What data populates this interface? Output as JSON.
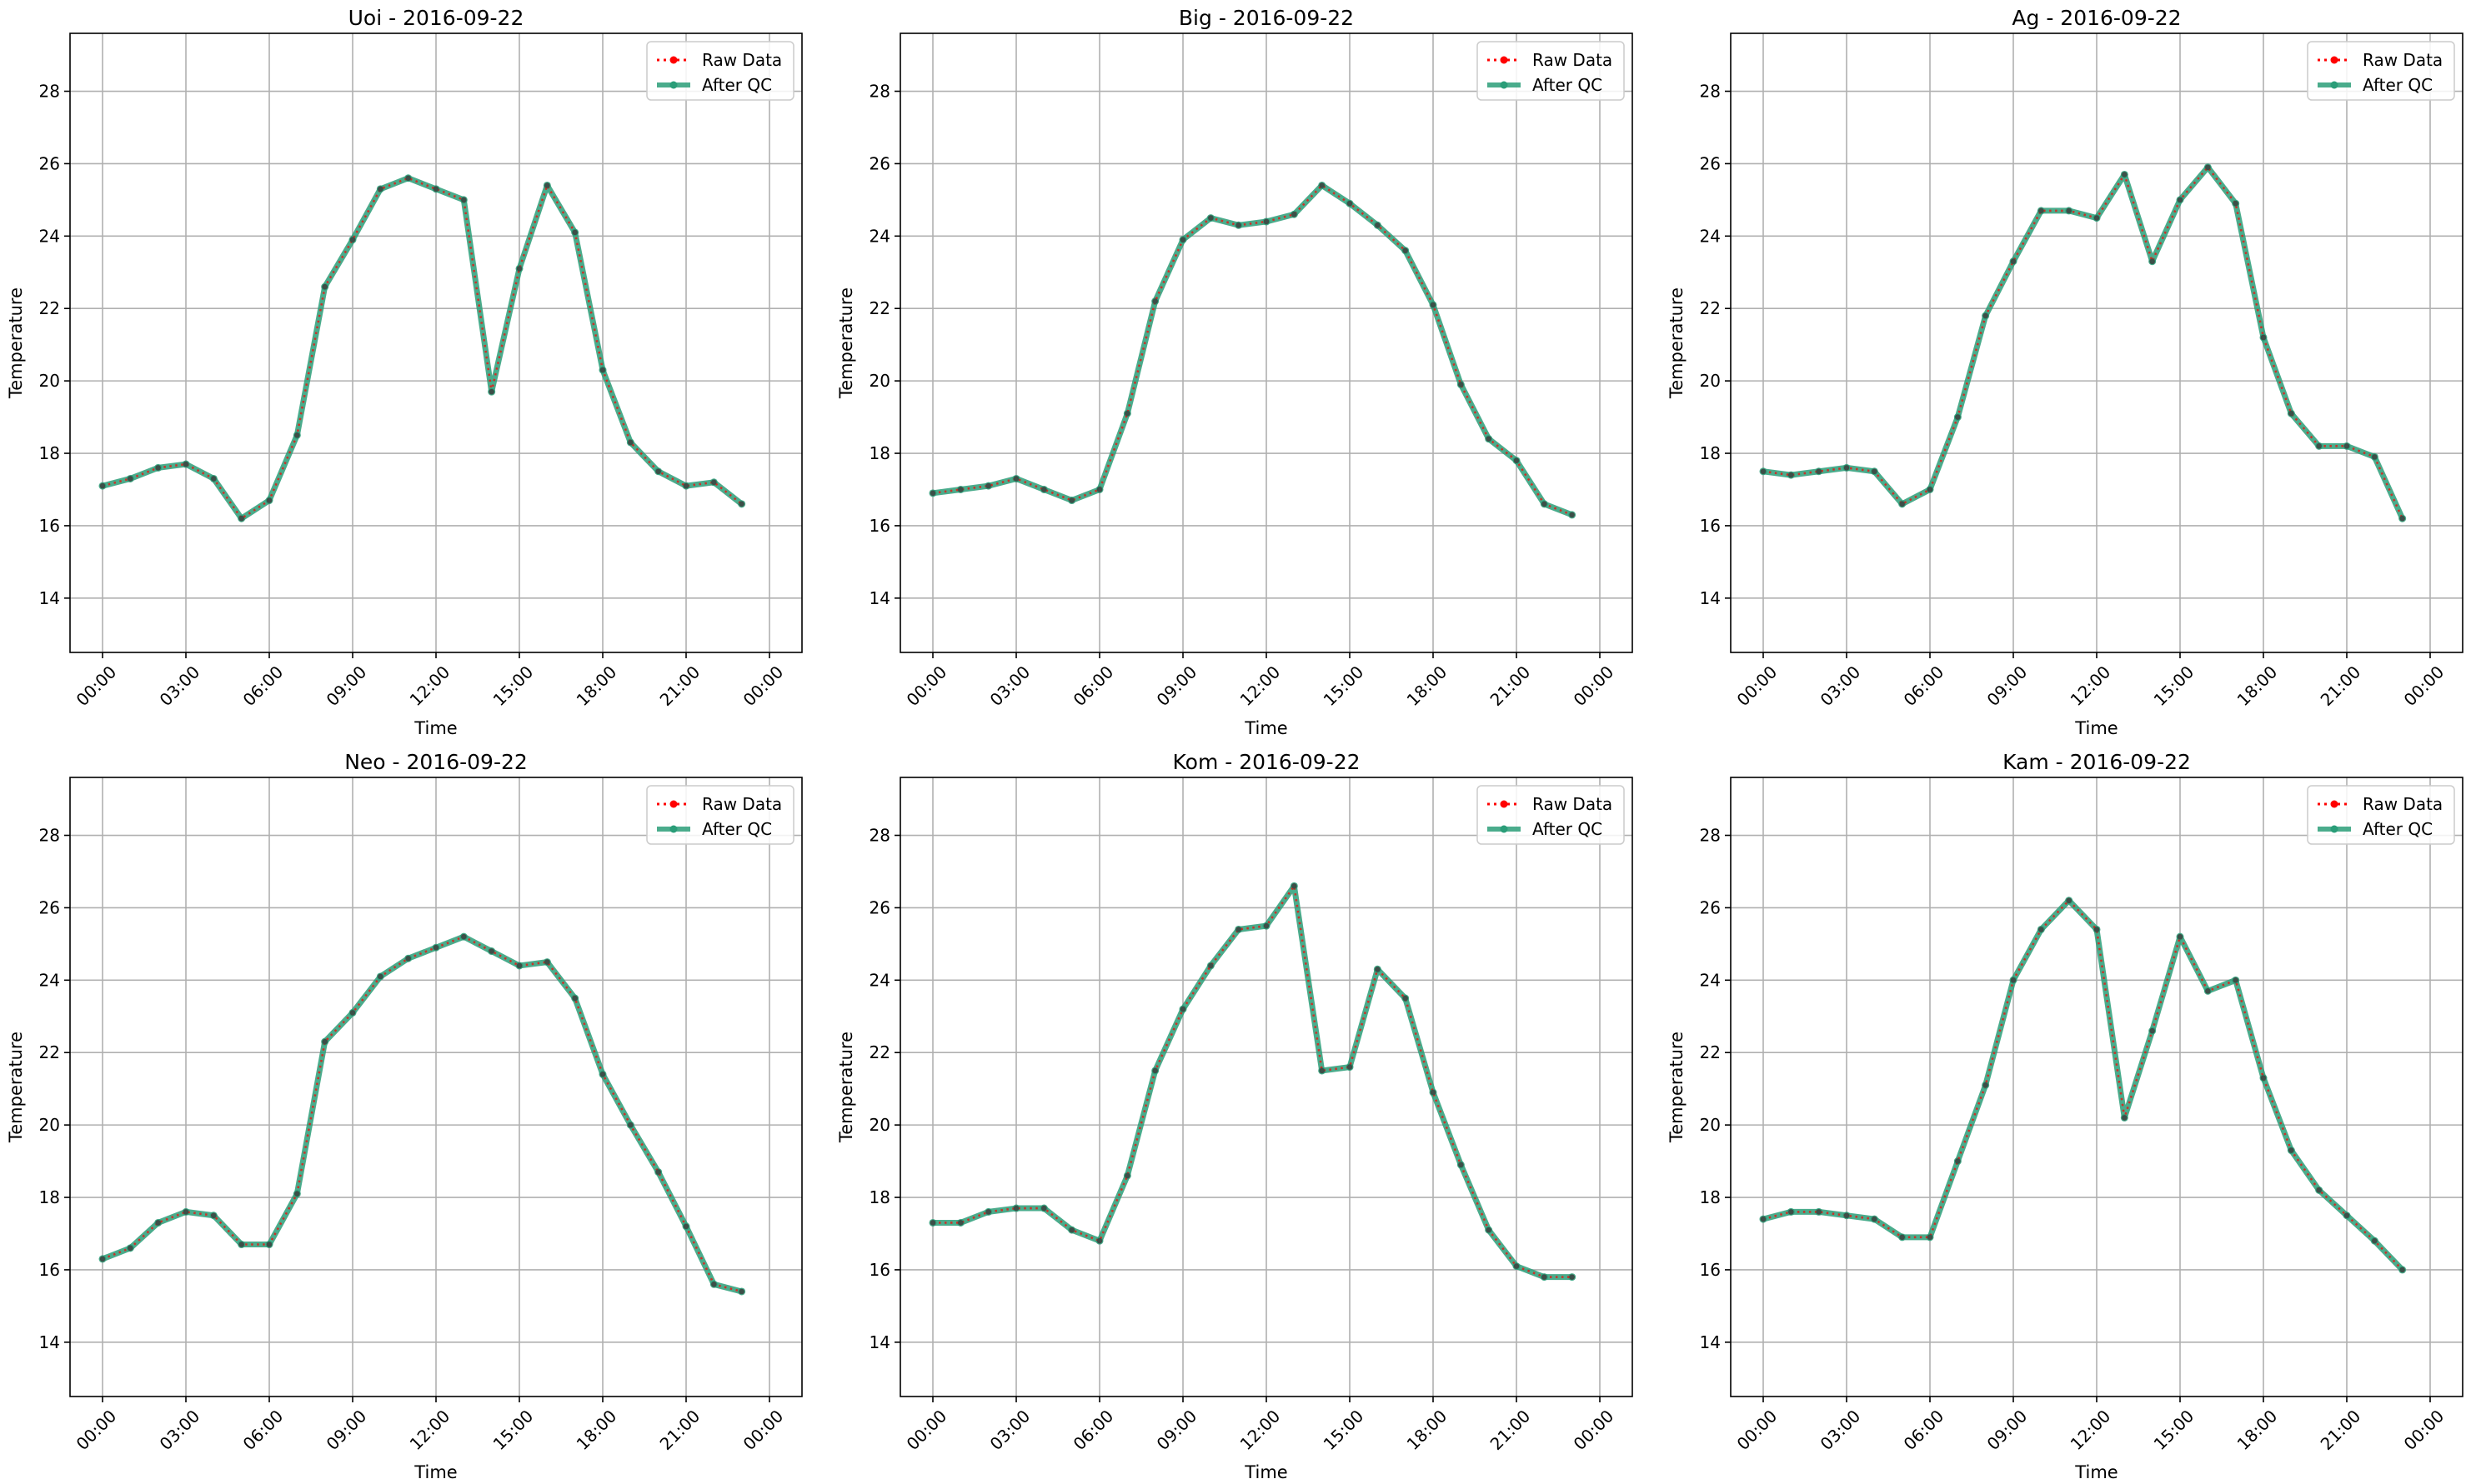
{
  "figure": {
    "legend_labels": {
      "raw": "Raw Data",
      "qc": "After QC"
    },
    "colors": {
      "raw": "#ff0000",
      "qc": "#2a9d78",
      "grid": "#b0b0b0"
    }
  },
  "chart_data": [
    {
      "type": "line",
      "title": "Uoi - 2016-09-22",
      "xlabel": "Time",
      "ylabel": "Temperature",
      "x": [
        "00:00",
        "01:00",
        "02:00",
        "03:00",
        "04:00",
        "05:00",
        "06:00",
        "07:00",
        "08:00",
        "09:00",
        "10:00",
        "11:00",
        "12:00",
        "13:00",
        "14:00",
        "15:00",
        "16:00",
        "17:00",
        "18:00",
        "19:00",
        "20:00",
        "21:00",
        "22:00",
        "23:00"
      ],
      "xticks": [
        "00:00",
        "03:00",
        "06:00",
        "09:00",
        "12:00",
        "15:00",
        "18:00",
        "21:00",
        "00:00"
      ],
      "yticks": [
        14,
        16,
        18,
        20,
        22,
        24,
        26,
        28
      ],
      "ylim": [
        12.5,
        29.6
      ],
      "grid": true,
      "legend": "upper-right",
      "series": [
        {
          "name": "Raw Data",
          "values": [
            17.1,
            17.3,
            17.6,
            17.7,
            17.3,
            16.2,
            16.7,
            18.5,
            22.6,
            23.9,
            25.3,
            25.6,
            25.3,
            25.0,
            19.7,
            23.1,
            25.4,
            24.1,
            20.3,
            18.3,
            17.5,
            17.1,
            17.2,
            16.6
          ]
        },
        {
          "name": "After QC",
          "values": [
            17.1,
            17.3,
            17.6,
            17.7,
            17.3,
            16.2,
            16.7,
            18.5,
            22.6,
            23.9,
            25.3,
            25.6,
            25.3,
            25.0,
            19.7,
            23.1,
            25.4,
            24.1,
            20.3,
            18.3,
            17.5,
            17.1,
            17.2,
            16.6
          ]
        }
      ]
    },
    {
      "type": "line",
      "title": "Big - 2016-09-22",
      "xlabel": "Time",
      "ylabel": "Temperature",
      "x": [
        "00:00",
        "01:00",
        "02:00",
        "03:00",
        "04:00",
        "05:00",
        "06:00",
        "07:00",
        "08:00",
        "09:00",
        "10:00",
        "11:00",
        "12:00",
        "13:00",
        "14:00",
        "15:00",
        "16:00",
        "17:00",
        "18:00",
        "19:00",
        "20:00",
        "21:00",
        "22:00",
        "23:00"
      ],
      "xticks": [
        "00:00",
        "03:00",
        "06:00",
        "09:00",
        "12:00",
        "15:00",
        "18:00",
        "21:00",
        "00:00"
      ],
      "yticks": [
        14,
        16,
        18,
        20,
        22,
        24,
        26,
        28
      ],
      "ylim": [
        12.5,
        29.6
      ],
      "grid": true,
      "legend": "upper-right",
      "series": [
        {
          "name": "Raw Data",
          "values": [
            16.9,
            17.0,
            17.1,
            17.3,
            17.0,
            16.7,
            17.0,
            19.1,
            22.2,
            23.9,
            24.5,
            24.3,
            24.4,
            24.6,
            25.4,
            24.9,
            24.3,
            23.6,
            22.1,
            19.9,
            18.4,
            17.8,
            16.6,
            16.3
          ]
        },
        {
          "name": "After QC",
          "values": [
            16.9,
            17.0,
            17.1,
            17.3,
            17.0,
            16.7,
            17.0,
            19.1,
            22.2,
            23.9,
            24.5,
            24.3,
            24.4,
            24.6,
            25.4,
            24.9,
            24.3,
            23.6,
            22.1,
            19.9,
            18.4,
            17.8,
            16.6,
            16.3
          ]
        }
      ]
    },
    {
      "type": "line",
      "title": "Ag - 2016-09-22",
      "xlabel": "Time",
      "ylabel": "Temperature",
      "x": [
        "00:00",
        "01:00",
        "02:00",
        "03:00",
        "04:00",
        "05:00",
        "06:00",
        "07:00",
        "08:00",
        "09:00",
        "10:00",
        "11:00",
        "12:00",
        "13:00",
        "14:00",
        "15:00",
        "16:00",
        "17:00",
        "18:00",
        "19:00",
        "20:00",
        "21:00",
        "22:00",
        "23:00"
      ],
      "xticks": [
        "00:00",
        "03:00",
        "06:00",
        "09:00",
        "12:00",
        "15:00",
        "18:00",
        "21:00",
        "00:00"
      ],
      "yticks": [
        14,
        16,
        18,
        20,
        22,
        24,
        26,
        28
      ],
      "ylim": [
        12.5,
        29.6
      ],
      "grid": true,
      "legend": "upper-right",
      "series": [
        {
          "name": "Raw Data",
          "values": [
            17.5,
            17.4,
            17.5,
            17.6,
            17.5,
            16.6,
            17.0,
            19.0,
            21.8,
            23.3,
            24.7,
            24.7,
            24.5,
            25.7,
            23.3,
            25.0,
            25.9,
            24.9,
            21.2,
            19.1,
            18.2,
            18.2,
            17.9,
            16.2
          ]
        },
        {
          "name": "After QC",
          "values": [
            17.5,
            17.4,
            17.5,
            17.6,
            17.5,
            16.6,
            17.0,
            19.0,
            21.8,
            23.3,
            24.7,
            24.7,
            24.5,
            25.7,
            23.3,
            25.0,
            25.9,
            24.9,
            21.2,
            19.1,
            18.2,
            18.2,
            17.9,
            16.2
          ]
        }
      ]
    },
    {
      "type": "line",
      "title": "Neo - 2016-09-22",
      "xlabel": "Time",
      "ylabel": "Temperature",
      "x": [
        "00:00",
        "01:00",
        "02:00",
        "03:00",
        "04:00",
        "05:00",
        "06:00",
        "07:00",
        "08:00",
        "09:00",
        "10:00",
        "11:00",
        "12:00",
        "13:00",
        "14:00",
        "15:00",
        "16:00",
        "17:00",
        "18:00",
        "19:00",
        "20:00",
        "21:00",
        "22:00",
        "23:00"
      ],
      "xticks": [
        "00:00",
        "03:00",
        "06:00",
        "09:00",
        "12:00",
        "15:00",
        "18:00",
        "21:00",
        "00:00"
      ],
      "yticks": [
        14,
        16,
        18,
        20,
        22,
        24,
        26,
        28
      ],
      "ylim": [
        12.5,
        29.6
      ],
      "grid": true,
      "legend": "upper-right",
      "series": [
        {
          "name": "Raw Data",
          "values": [
            16.3,
            16.6,
            17.3,
            17.6,
            17.5,
            16.7,
            16.7,
            18.1,
            22.3,
            23.1,
            24.1,
            24.6,
            24.9,
            25.2,
            24.8,
            24.4,
            24.5,
            23.5,
            21.4,
            20.0,
            18.7,
            17.2,
            15.6,
            15.4
          ]
        },
        {
          "name": "After QC",
          "values": [
            16.3,
            16.6,
            17.3,
            17.6,
            17.5,
            16.7,
            16.7,
            18.1,
            22.3,
            23.1,
            24.1,
            24.6,
            24.9,
            25.2,
            24.8,
            24.4,
            24.5,
            23.5,
            21.4,
            20.0,
            18.7,
            17.2,
            15.6,
            15.4
          ]
        }
      ]
    },
    {
      "type": "line",
      "title": "Kom - 2016-09-22",
      "xlabel": "Time",
      "ylabel": "Temperature",
      "x": [
        "00:00",
        "01:00",
        "02:00",
        "03:00",
        "04:00",
        "05:00",
        "06:00",
        "07:00",
        "08:00",
        "09:00",
        "10:00",
        "11:00",
        "12:00",
        "13:00",
        "14:00",
        "15:00",
        "16:00",
        "17:00",
        "18:00",
        "19:00",
        "20:00",
        "21:00",
        "22:00",
        "23:00"
      ],
      "xticks": [
        "00:00",
        "03:00",
        "06:00",
        "09:00",
        "12:00",
        "15:00",
        "18:00",
        "21:00",
        "00:00"
      ],
      "yticks": [
        14,
        16,
        18,
        20,
        22,
        24,
        26,
        28
      ],
      "ylim": [
        12.5,
        29.6
      ],
      "grid": true,
      "legend": "upper-right",
      "series": [
        {
          "name": "Raw Data",
          "values": [
            17.3,
            17.3,
            17.6,
            17.7,
            17.7,
            17.1,
            16.8,
            18.6,
            21.5,
            23.2,
            24.4,
            25.4,
            25.5,
            26.6,
            21.5,
            21.6,
            24.3,
            23.5,
            20.9,
            18.9,
            17.1,
            16.1,
            15.8,
            15.8
          ]
        },
        {
          "name": "After QC",
          "values": [
            17.3,
            17.3,
            17.6,
            17.7,
            17.7,
            17.1,
            16.8,
            18.6,
            21.5,
            23.2,
            24.4,
            25.4,
            25.5,
            26.6,
            21.5,
            21.6,
            24.3,
            23.5,
            20.9,
            18.9,
            17.1,
            16.1,
            15.8,
            15.8
          ]
        }
      ]
    },
    {
      "type": "line",
      "title": "Kam - 2016-09-22",
      "xlabel": "Time",
      "ylabel": "Temperature",
      "x": [
        "00:00",
        "01:00",
        "02:00",
        "03:00",
        "04:00",
        "05:00",
        "06:00",
        "07:00",
        "08:00",
        "09:00",
        "10:00",
        "11:00",
        "12:00",
        "13:00",
        "14:00",
        "15:00",
        "16:00",
        "17:00",
        "18:00",
        "19:00",
        "20:00",
        "21:00",
        "22:00",
        "23:00"
      ],
      "xticks": [
        "00:00",
        "03:00",
        "06:00",
        "09:00",
        "12:00",
        "15:00",
        "18:00",
        "21:00",
        "00:00"
      ],
      "yticks": [
        14,
        16,
        18,
        20,
        22,
        24,
        26,
        28
      ],
      "ylim": [
        12.5,
        29.6
      ],
      "grid": true,
      "legend": "upper-right",
      "series": [
        {
          "name": "Raw Data",
          "values": [
            17.4,
            17.6,
            17.6,
            17.5,
            17.4,
            16.9,
            16.9,
            19.0,
            21.1,
            24.0,
            25.4,
            26.2,
            25.4,
            20.2,
            22.6,
            25.2,
            23.7,
            24.0,
            21.3,
            19.3,
            18.2,
            17.5,
            16.8,
            16.0
          ]
        },
        {
          "name": "After QC",
          "values": [
            17.4,
            17.6,
            17.6,
            17.5,
            17.4,
            16.9,
            16.9,
            19.0,
            21.1,
            24.0,
            25.4,
            26.2,
            25.4,
            20.2,
            22.6,
            25.2,
            23.7,
            24.0,
            21.3,
            19.3,
            18.2,
            17.5,
            16.8,
            16.0
          ]
        }
      ]
    }
  ]
}
